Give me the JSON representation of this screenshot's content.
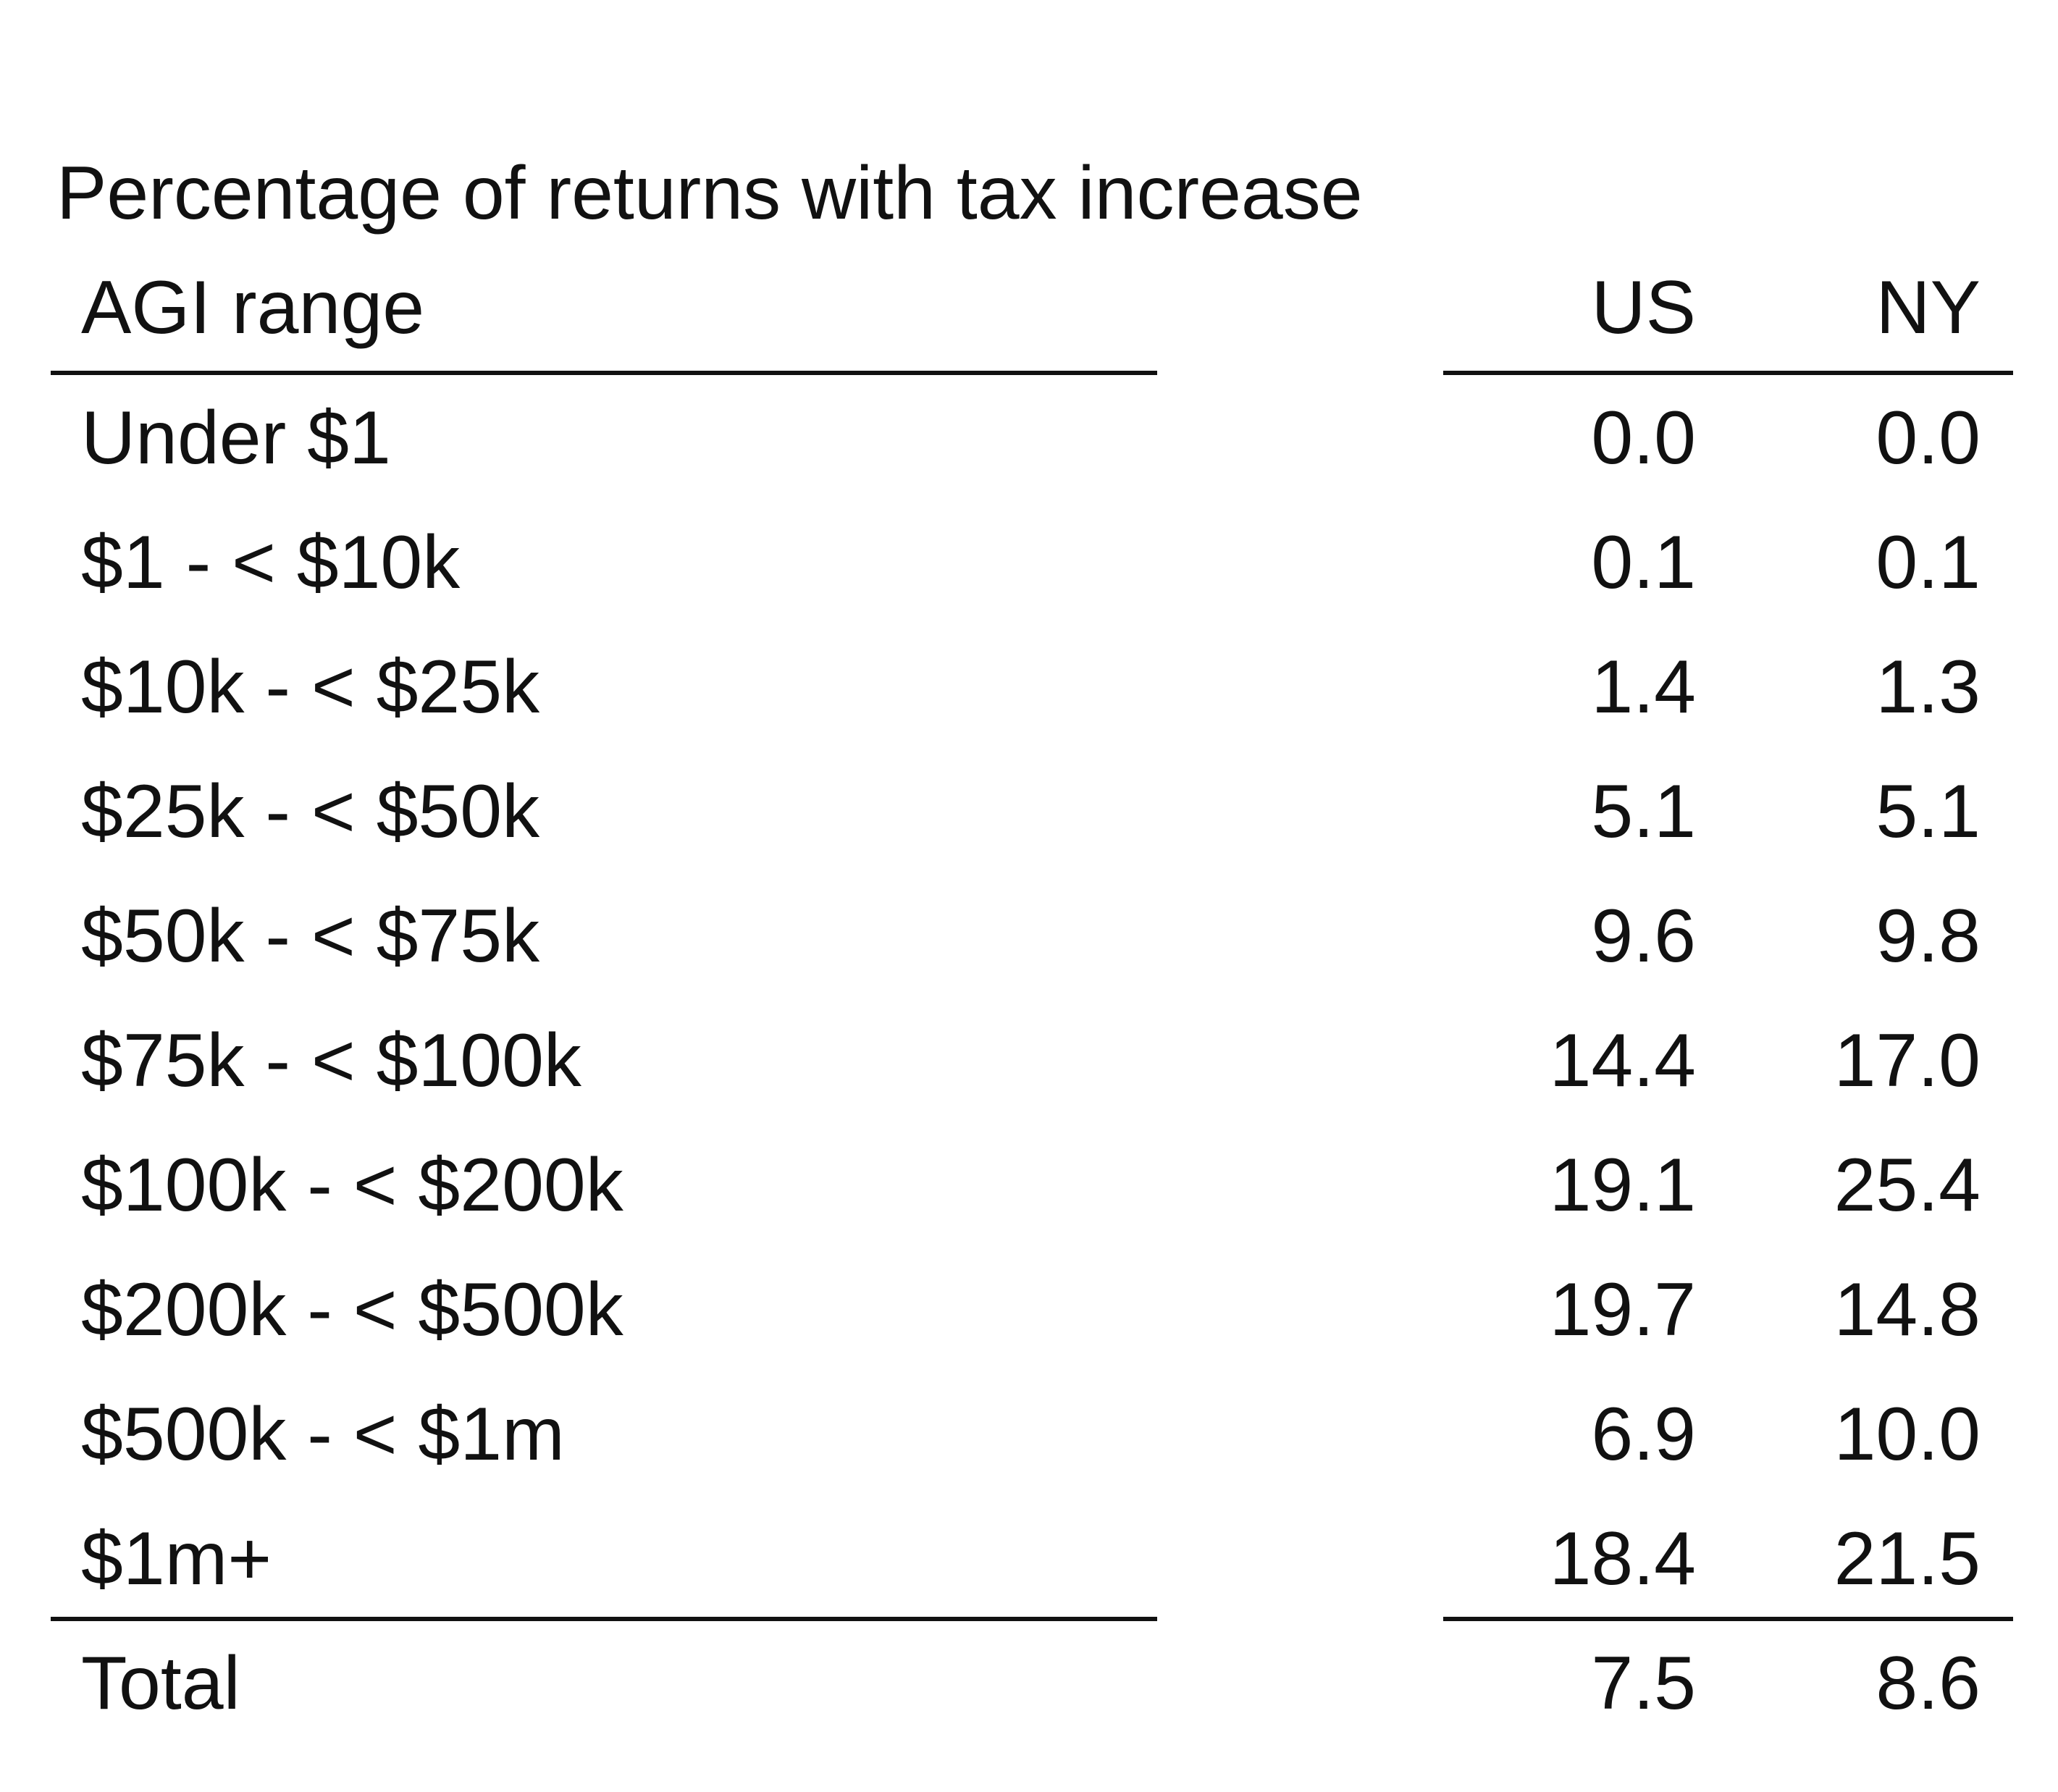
{
  "chart_data": {
    "type": "table",
    "title": "Percentage of returns with tax increase",
    "columns": [
      "AGI range",
      "US",
      "NY"
    ],
    "rows": [
      {
        "label": "Under $1",
        "US": "0.0",
        "NY": "0.0"
      },
      {
        "label": "$1 - < $10k",
        "US": "0.1",
        "NY": "0.1"
      },
      {
        "label": "$10k - < $25k",
        "US": "1.4",
        "NY": "1.3"
      },
      {
        "label": "$25k - < $50k",
        "US": "5.1",
        "NY": "5.1"
      },
      {
        "label": "$50k - < $75k",
        "US": "9.6",
        "NY": "9.8"
      },
      {
        "label": "$75k - < $100k",
        "US": "14.4",
        "NY": "17.0"
      },
      {
        "label": "$100k - < $200k",
        "US": "19.1",
        "NY": "25.4"
      },
      {
        "label": "$200k - < $500k",
        "US": "19.7",
        "NY": "14.8"
      },
      {
        "label": "$500k - < $1m",
        "US": "6.9",
        "NY": "10.0"
      },
      {
        "label": "$1m+",
        "US": "18.4",
        "NY": "21.5"
      }
    ],
    "total": {
      "label": "Total",
      "US": "7.5",
      "NY": "8.6"
    }
  }
}
